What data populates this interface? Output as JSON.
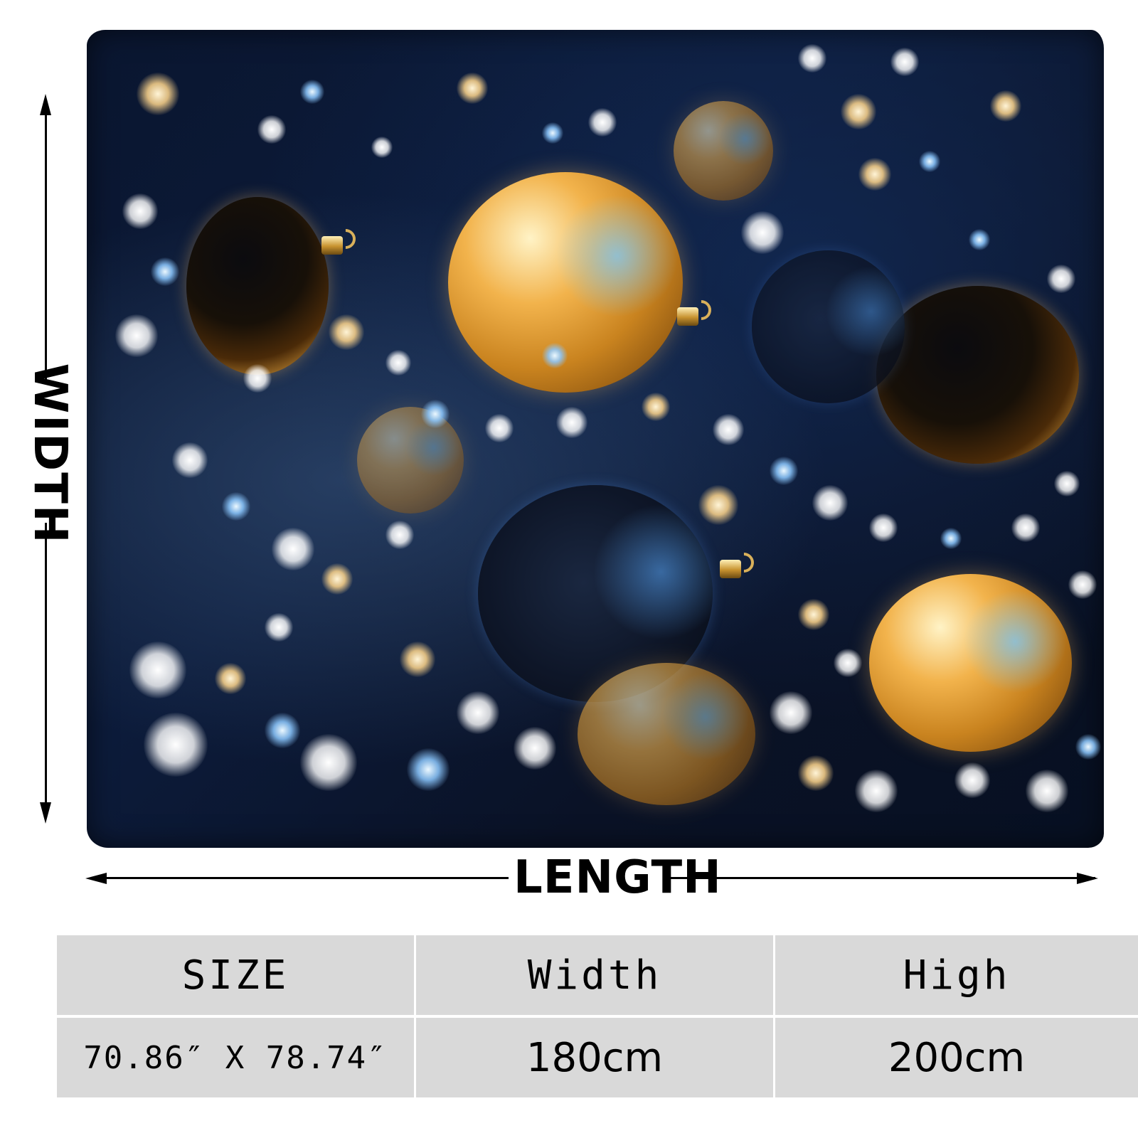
{
  "dimensions": {
    "vertical_label": "WIDTH",
    "horizontal_label": "LENGTH"
  },
  "size_table": {
    "headers": [
      "SIZE",
      "Width",
      "High"
    ],
    "row": [
      "70.86″ X 78.74″",
      "180cm",
      "200cm"
    ]
  },
  "colors": {
    "background": "#ffffff",
    "table_cell": "#d9d9d9",
    "text": "#000000"
  }
}
